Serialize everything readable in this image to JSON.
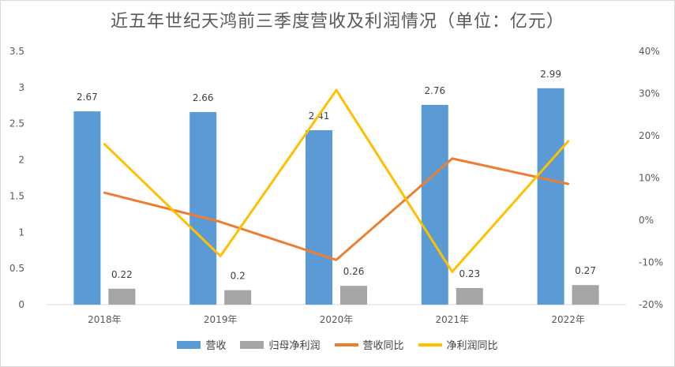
{
  "chart_data": {
    "type": "bar",
    "title": "近五年世纪天鸿前三季度营收及利润情况（单位：亿元）",
    "categories": [
      "2018年",
      "2019年",
      "2020年",
      "2021年",
      "2022年"
    ],
    "series": [
      {
        "name": "营收",
        "type": "bar",
        "axis": "left",
        "color": "#5b9bd5",
        "values": [
          2.67,
          2.66,
          2.41,
          2.76,
          2.99
        ]
      },
      {
        "name": "归母净利润",
        "type": "bar",
        "axis": "left",
        "color": "#a5a5a5",
        "values": [
          0.22,
          0.2,
          0.26,
          0.23,
          0.27
        ]
      },
      {
        "name": "营收同比",
        "type": "line",
        "axis": "right",
        "color": "#ed7d31",
        "values": [
          6.5,
          -0.4,
          -9.4,
          14.6,
          8.6
        ]
      },
      {
        "name": "净利润同比",
        "type": "line",
        "axis": "right",
        "color": "#ffc000",
        "values": [
          18.0,
          -8.5,
          30.8,
          -12.2,
          18.7
        ]
      }
    ],
    "data_labels": {
      "营收": [
        "2.67",
        "2.66",
        "2.41",
        "2.76",
        "2.99"
      ],
      "归母净利润": [
        "0.22",
        "0.2",
        "0.26",
        "0.23",
        "0.27"
      ]
    },
    "y_left": {
      "min": 0,
      "max": 3.5,
      "ticks": [
        "0",
        "0.5",
        "1",
        "1.5",
        "2",
        "2.5",
        "3",
        "3.5"
      ]
    },
    "y_right": {
      "min": -20,
      "max": 40,
      "ticks": [
        "-20%",
        "-10%",
        "0%",
        "10%",
        "20%",
        "30%",
        "40%"
      ]
    },
    "grid": false,
    "legend_position": "bottom"
  }
}
